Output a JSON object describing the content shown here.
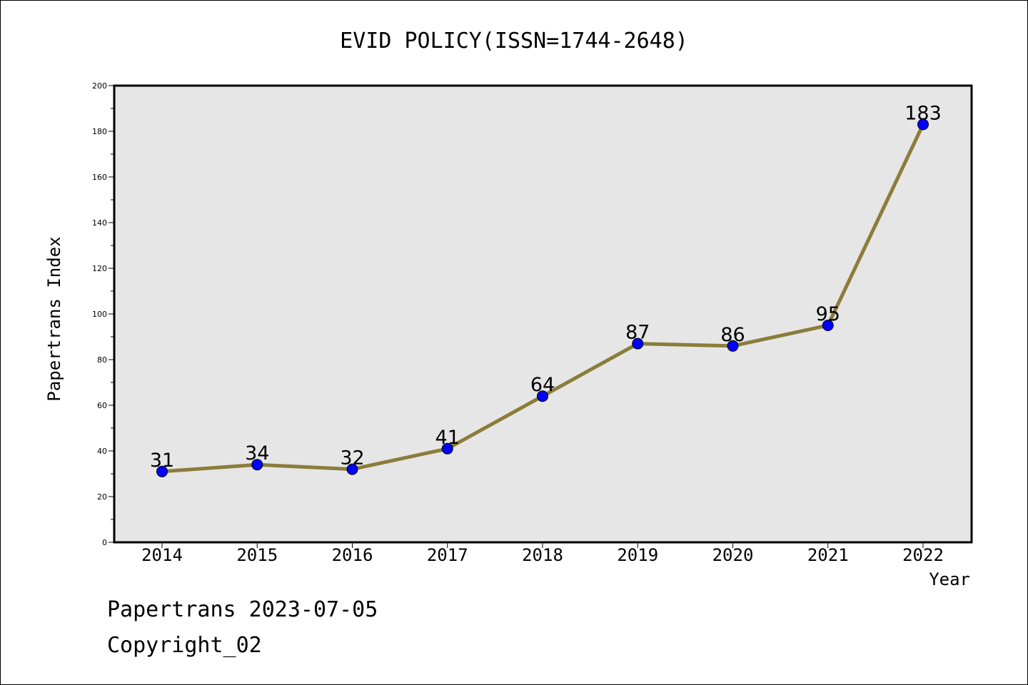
{
  "chart_data": {
    "type": "line",
    "title": "EVID POLICY(ISSN=1744-2648)",
    "xlabel": "Year",
    "ylabel": "Papertrans Index",
    "categories": [
      "2014",
      "2015",
      "2016",
      "2017",
      "2018",
      "2019",
      "2020",
      "2021",
      "2022"
    ],
    "series": [
      {
        "values": [
          31,
          34,
          32,
          41,
          64,
          87,
          86,
          95,
          183
        ],
        "line_color": "#8b7d3a",
        "marker_color": "#0000ff"
      }
    ],
    "ylim": [
      0,
      200
    ],
    "yticks": [
      0,
      20,
      40,
      60,
      80,
      100,
      120,
      140,
      160,
      180,
      200
    ],
    "grid": false,
    "plot_background": "#e6e6e6",
    "data_labels": true
  },
  "footer": {
    "line1": "Papertrans 2023-07-05",
    "line2": "Copyright_02"
  }
}
